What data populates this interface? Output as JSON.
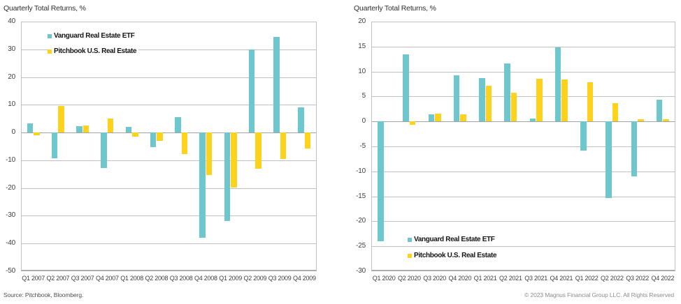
{
  "chart_data": [
    {
      "type": "bar",
      "title": "Quarterly Total Returns, %",
      "categories": [
        "Q1 2007",
        "Q2 2007",
        "Q3 2007",
        "Q4 2007",
        "Q1 2008",
        "Q2 2008",
        "Q3 2008",
        "Q4 2008",
        "Q1 2009",
        "Q2 2009",
        "Q3 2009",
        "Q4 2009"
      ],
      "series": [
        {
          "name": "Vanguard Real Estate ETF",
          "color": "#6FC7CE",
          "values": [
            3.4,
            -9.3,
            2.4,
            -12.8,
            2.1,
            -5.2,
            5.5,
            -38,
            -32,
            30,
            34.5,
            9.1
          ]
        },
        {
          "name": "Pitchbook U.S. Real Estate",
          "color": "#FCD21D",
          "values": [
            -1,
            9.5,
            2.5,
            5.1,
            -1.4,
            -3.1,
            -7.8,
            -15.2,
            -19.8,
            -13,
            -9.4,
            -5.8
          ]
        }
      ],
      "ylim": [
        -50,
        40
      ],
      "ytick_step": 10,
      "grid": true,
      "legend_position": "top-left",
      "source_note": "Source: Pitchbook, Bloomberg."
    },
    {
      "type": "bar",
      "title": "Quarterly Total Returns, %",
      "categories": [
        "Q1 2020",
        "Q2 2020",
        "Q3 2020",
        "Q4 2020",
        "Q1 2021",
        "Q2 2021",
        "Q3 2021",
        "Q4 2021",
        "Q1 2022",
        "Q2 2022",
        "Q3 2022",
        "Q4 2022"
      ],
      "series": [
        {
          "name": "Vanguard Real Estate ETF",
          "color": "#6FC7CE",
          "values": [
            -24,
            13.4,
            1.4,
            9.2,
            8.7,
            11.6,
            0.6,
            14.9,
            -5.9,
            -15.4,
            -11,
            4.3
          ]
        },
        {
          "name": "Pitchbook U.S. Real Estate",
          "color": "#FCD21D",
          "values": [
            0,
            -0.7,
            1.6,
            1.4,
            7.1,
            5.7,
            8.6,
            8.4,
            7.8,
            3.7,
            0.5,
            0.4
          ]
        }
      ],
      "ylim": [
        -30,
        20
      ],
      "ytick_step": 5,
      "grid": true,
      "legend_position": "bottom-left",
      "copyright": "© 2023 Magnus Financial Group LLC. All Rights Reserved"
    }
  ]
}
